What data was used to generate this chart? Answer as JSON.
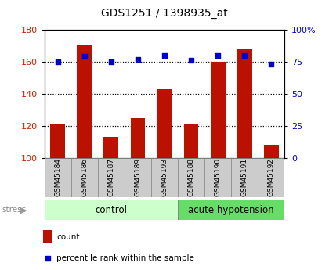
{
  "title": "GDS1251 / 1398935_at",
  "samples": [
    "GSM45184",
    "GSM45186",
    "GSM45187",
    "GSM45189",
    "GSM45193",
    "GSM45188",
    "GSM45190",
    "GSM45191",
    "GSM45192"
  ],
  "count_values": [
    121,
    170,
    113,
    125,
    143,
    121,
    160,
    168,
    108
  ],
  "percentile_values": [
    75,
    79,
    75,
    77,
    80,
    76,
    80,
    80,
    73
  ],
  "bar_color": "#bb1100",
  "dot_color": "#0000cc",
  "ylim_left": [
    100,
    180
  ],
  "ylim_right": [
    0,
    100
  ],
  "yticks_left": [
    100,
    120,
    140,
    160,
    180
  ],
  "yticks_right": [
    0,
    25,
    50,
    75,
    100
  ],
  "ytick_labels_right": [
    "0",
    "25",
    "50",
    "75",
    "100%"
  ],
  "grid_values": [
    120,
    140,
    160
  ],
  "bar_width": 0.55,
  "control_label": "control",
  "hypotension_label": "acute hypotension",
  "stress_label": "stress",
  "legend_count": "count",
  "legend_percentile": "percentile rank within the sample",
  "control_color": "#ccffcc",
  "hypotension_color": "#66dd66",
  "left_tick_color": "#cc2200",
  "right_tick_color": "#0000cc",
  "sample_box_color": "#cccccc",
  "n_control": 5,
  "n_hypotension": 4
}
